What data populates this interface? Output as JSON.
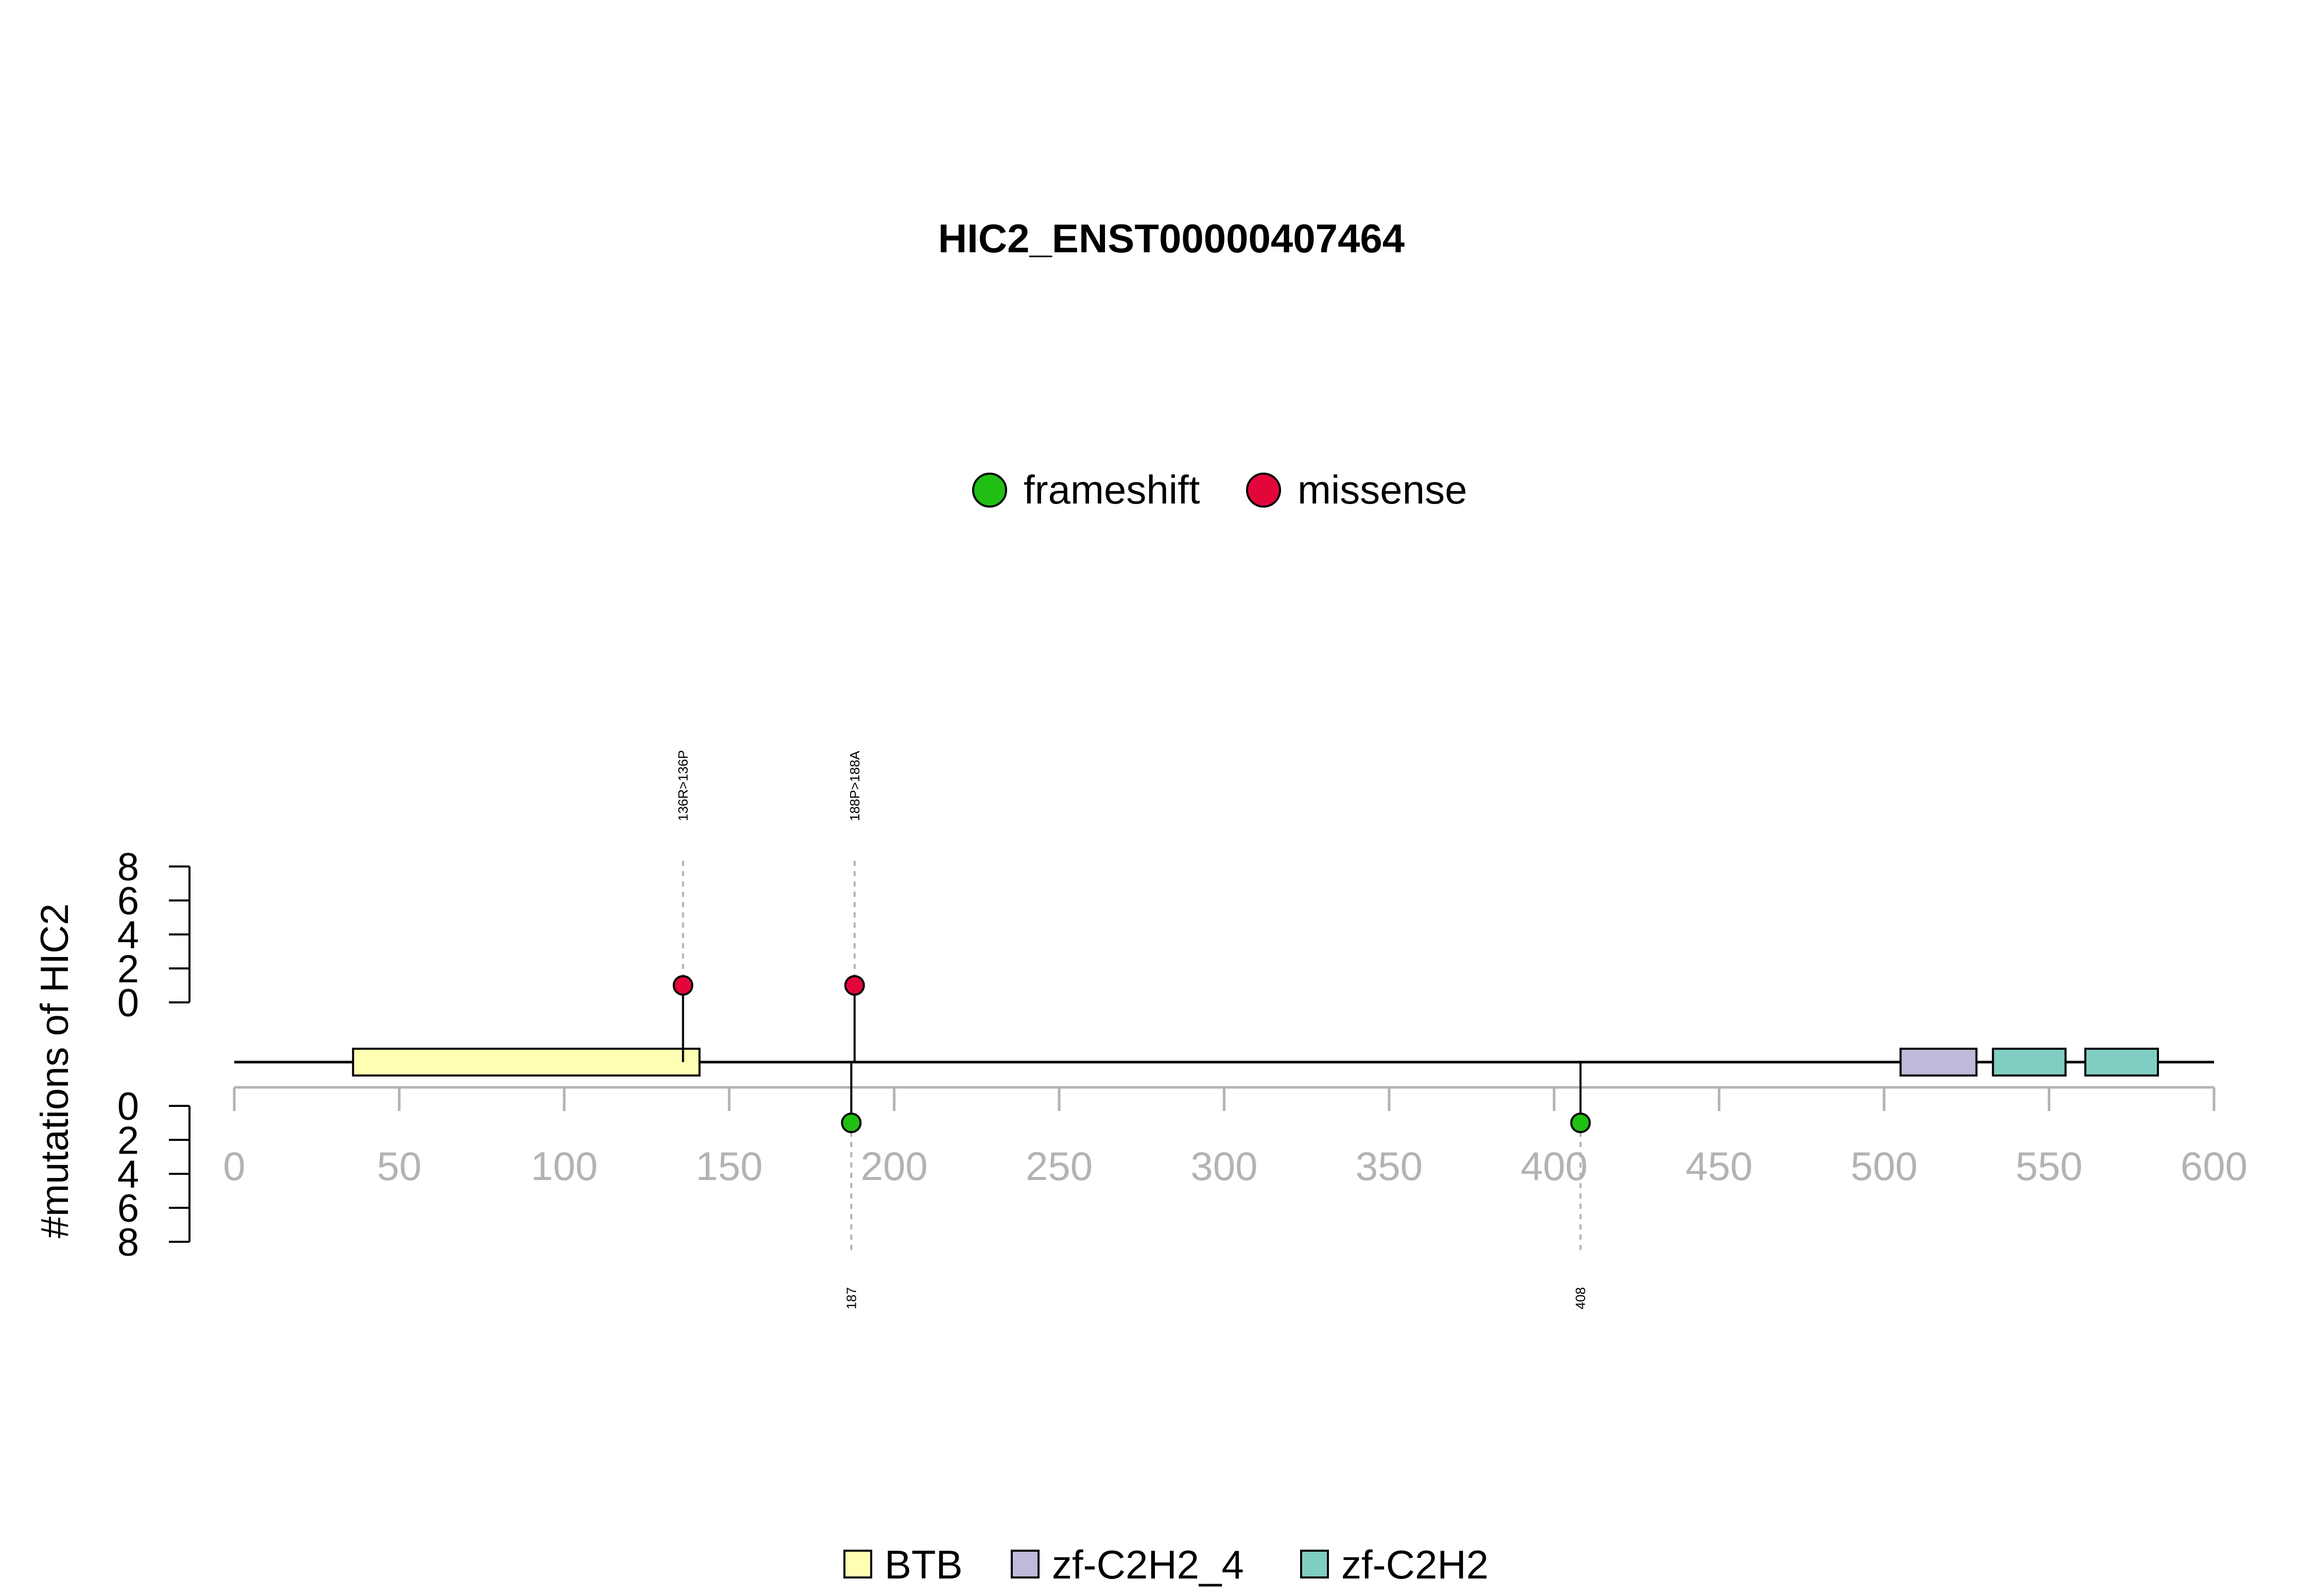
{
  "chart_data": {
    "type": "lollipop",
    "title": "HIC2_ENST00000407464",
    "ylabel": "#mutations of HIC2",
    "protein_length": 600,
    "xlim": [
      0,
      600
    ],
    "x_ticks": [
      "0",
      "50",
      "100",
      "150",
      "200",
      "250",
      "300",
      "350",
      "400",
      "450",
      "500",
      "550",
      "600"
    ],
    "y_ticks_top": [
      "0",
      "2",
      "4",
      "6",
      "8"
    ],
    "y_ticks_bottom": [
      "0",
      "2",
      "4",
      "6",
      "8"
    ],
    "ylim": [
      0,
      8
    ],
    "mutation_legend": [
      {
        "name": "frameshift",
        "color": "#1fbf13"
      },
      {
        "name": "missense",
        "color": "#e3063a"
      }
    ],
    "mutations_top": [
      {
        "position": 136,
        "count": 1,
        "type": "missense",
        "label": "136R>136P"
      },
      {
        "position": 188,
        "count": 1,
        "type": "missense",
        "label": "188P>188A"
      }
    ],
    "mutations_bottom": [
      {
        "position": 187,
        "count": 1,
        "type": "frameshift",
        "label": "187"
      },
      {
        "position": 408,
        "count": 1,
        "type": "frameshift",
        "label": "408"
      }
    ],
    "domains": [
      {
        "name": "BTB",
        "start": 36,
        "end": 141,
        "color": "#ffffb3"
      },
      {
        "name": "zf-C2H2_4",
        "start": 505,
        "end": 528,
        "color": "#bebada"
      },
      {
        "name": "zf-C2H2",
        "start": 533,
        "end": 555,
        "color": "#80cdc1"
      },
      {
        "name": "zf-C2H2",
        "start": 561,
        "end": 583,
        "color": "#80cdc1"
      }
    ],
    "domain_legend": [
      {
        "name": "BTB",
        "color": "#ffffb3"
      },
      {
        "name": "zf-C2H2_4",
        "color": "#bebada"
      },
      {
        "name": "zf-C2H2",
        "color": "#80cdc1"
      }
    ],
    "grid": false,
    "legend_placement": "top-center / bottom-center"
  }
}
